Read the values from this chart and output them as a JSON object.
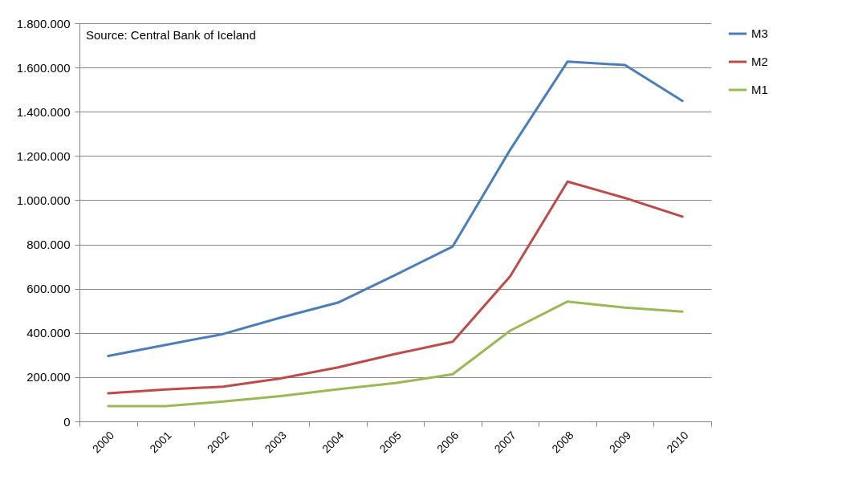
{
  "chart_data": {
    "type": "line",
    "annotations": [
      "Source: Central Bank of Iceland"
    ],
    "categories": [
      "2000",
      "2001",
      "2002",
      "2003",
      "2004",
      "2005",
      "2006",
      "2007",
      "2008",
      "2009",
      "2010"
    ],
    "series": [
      {
        "name": "M3",
        "color": "#4a7ebb",
        "values": [
          296000,
          346000,
          395000,
          469000,
          537000,
          662000,
          791000,
          1228000,
          1627000,
          1611000,
          1449000
        ]
      },
      {
        "name": "M2",
        "color": "#be4b48",
        "values": [
          127000,
          144000,
          157000,
          194000,
          244000,
          305000,
          360000,
          656000,
          1084000,
          1010000,
          926000
        ]
      },
      {
        "name": "M1",
        "color": "#98b954",
        "values": [
          69000,
          69000,
          90000,
          114000,
          145000,
          173000,
          213000,
          410000,
          542000,
          514000,
          496000
        ]
      }
    ],
    "ylim": [
      0,
      1800000
    ],
    "yticks": [
      0,
      {
        "value": 200000,
        "label": "200.000"
      },
      {
        "value": 400000,
        "label": "400.000"
      },
      {
        "value": 600000,
        "label": "600.000"
      },
      {
        "value": 800000,
        "label": "800.000"
      },
      {
        "value": 1000000,
        "label": "1.000.000"
      },
      {
        "value": 1200000,
        "label": "1.200.000"
      },
      {
        "value": 1400000,
        "label": "1.400.000"
      },
      {
        "value": 1600000,
        "label": "1.600.000"
      },
      {
        "value": 1800000,
        "label": "1.800.000"
      }
    ],
    "grid": "y",
    "legend": "right",
    "marker": "none",
    "line_style": "solid"
  }
}
